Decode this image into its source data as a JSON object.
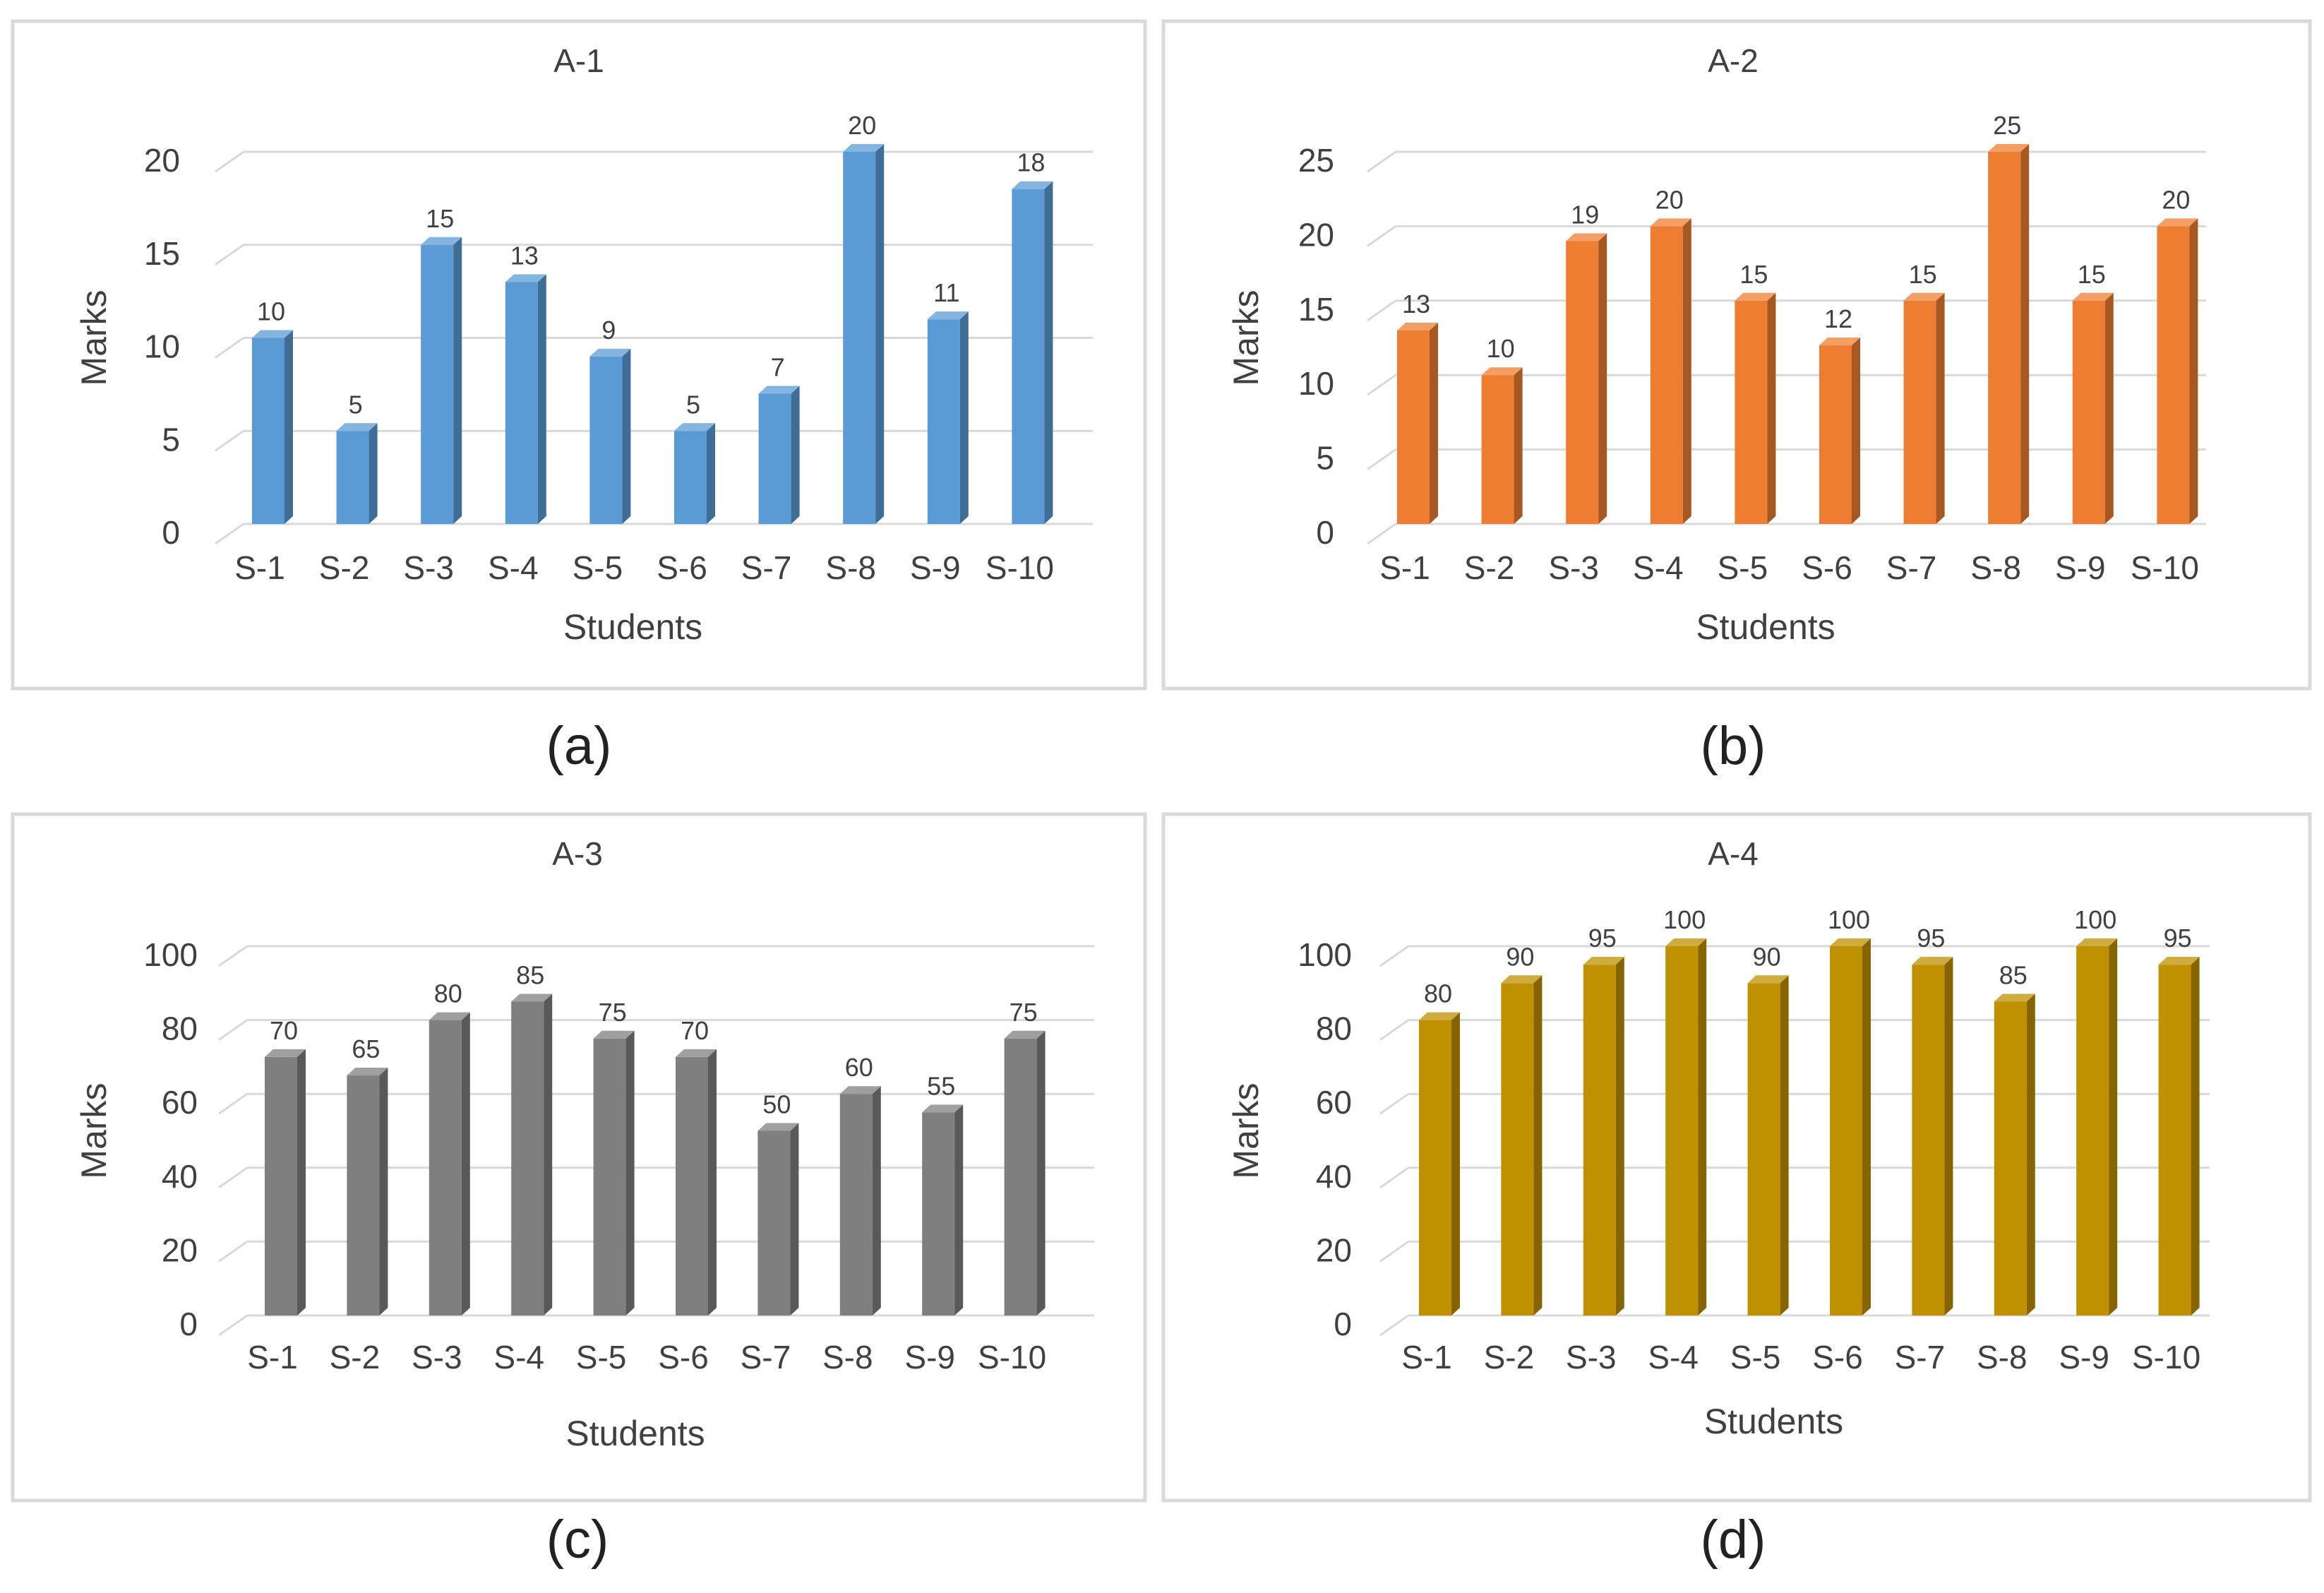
{
  "chart_data": [
    {
      "type": "bar",
      "title": "A-1",
      "caption": "(a)",
      "xlabel": "Students",
      "ylabel": "Marks",
      "categories": [
        "S-1",
        "S-2",
        "S-3",
        "S-4",
        "S-5",
        "S-6",
        "S-7",
        "S-8",
        "S-9",
        "S-10"
      ],
      "values": [
        10,
        5,
        15,
        13,
        9,
        5,
        7,
        20,
        11,
        18
      ],
      "ylim": [
        0,
        20
      ],
      "yticks": [
        0,
        5,
        10,
        15,
        20
      ],
      "grid": true,
      "color": "#5b9bd5",
      "style": "3d-column"
    },
    {
      "type": "bar",
      "title": "A-2",
      "caption": "(b)",
      "xlabel": "Students",
      "ylabel": "Marks",
      "categories": [
        "S-1",
        "S-2",
        "S-3",
        "S-4",
        "S-5",
        "S-6",
        "S-7",
        "S-8",
        "S-9",
        "S-10"
      ],
      "values": [
        13,
        10,
        19,
        20,
        15,
        12,
        15,
        25,
        15,
        20
      ],
      "ylim": [
        0,
        25
      ],
      "yticks": [
        0,
        5,
        10,
        15,
        20,
        25
      ],
      "grid": true,
      "color": "#ed7d31",
      "style": "3d-column"
    },
    {
      "type": "bar",
      "title": "A-3",
      "caption": "(c)",
      "xlabel": "Students",
      "ylabel": "Marks",
      "categories": [
        "S-1",
        "S-2",
        "S-3",
        "S-4",
        "S-5",
        "S-6",
        "S-7",
        "S-8",
        "S-9",
        "S-10"
      ],
      "values": [
        70,
        65,
        80,
        85,
        75,
        70,
        50,
        60,
        55,
        75
      ],
      "ylim": [
        0,
        100
      ],
      "yticks": [
        0,
        20,
        40,
        60,
        80,
        100
      ],
      "grid": true,
      "color": "#7f7f7f",
      "style": "3d-column"
    },
    {
      "type": "bar",
      "title": "A-4",
      "caption": "(d)",
      "xlabel": "Students",
      "ylabel": "Marks",
      "categories": [
        "S-1",
        "S-2",
        "S-3",
        "S-4",
        "S-5",
        "S-6",
        "S-7",
        "S-8",
        "S-9",
        "S-10"
      ],
      "values": [
        80,
        90,
        95,
        100,
        90,
        100,
        95,
        85,
        100,
        95
      ],
      "ylim": [
        0,
        100
      ],
      "yticks": [
        0,
        20,
        40,
        60,
        80,
        100
      ],
      "grid": true,
      "color": "#bf9000",
      "style": "3d-column"
    }
  ]
}
